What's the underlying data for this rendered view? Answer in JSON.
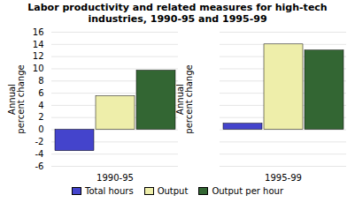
{
  "chart_data": {
    "type": "bar",
    "title": "Labor productivity and related measures for high-tech\nindustries, 1990-95 and 1995-99",
    "ylabel": "Annual\npercent change",
    "categories": [
      "1990-95",
      "1995-99"
    ],
    "series": [
      {
        "name": "Total hours",
        "color": "#4444cc",
        "values": [
          -3.5,
          1.0
        ]
      },
      {
        "name": "Output",
        "color": "#eeeeaa",
        "values": [
          5.5,
          14.0
        ]
      },
      {
        "name": "Output per hour",
        "color": "#336633",
        "values": [
          9.7,
          13.0
        ]
      }
    ],
    "ylim": [
      -6,
      16
    ],
    "yticks": [
      -6,
      -4,
      -2,
      0,
      2,
      4,
      6,
      8,
      10,
      12,
      14,
      16
    ],
    "grid": true,
    "legend": "bottom"
  }
}
